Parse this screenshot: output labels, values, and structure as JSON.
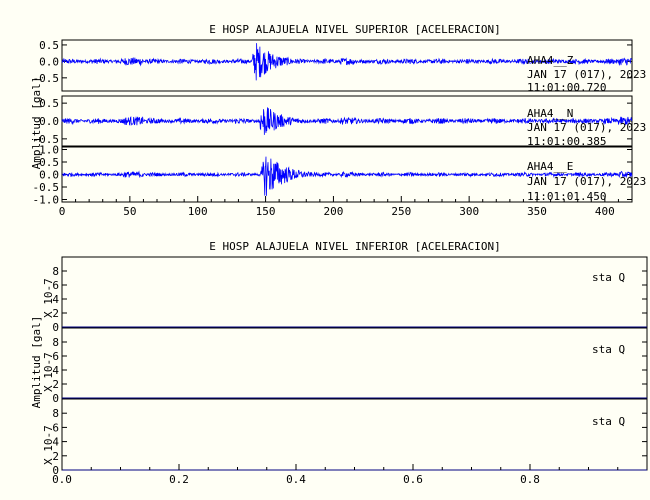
{
  "chart_data": [
    {
      "type": "line",
      "title": "E HOSP ALAJUELA NIVEL SUPERIOR [ACELERACION]",
      "ylabel": "Amplitud [gal]",
      "xlim": [
        0,
        420
      ],
      "x_ticks": [
        "0",
        "50",
        "100",
        "150",
        "200",
        "250",
        "300",
        "350",
        "400"
      ],
      "line_color": "#0000ff",
      "panels": [
        {
          "name": "AHA4 Z",
          "station_label": "AHA4__Z",
          "date_label": "JAN 17 (017), 2023",
          "time_label": "11:01:00.720",
          "ylim": [
            -0.9,
            0.65
          ],
          "y_ticks": [
            "0.5",
            "0.0",
            "-0.5"
          ],
          "peak_abs": 0.62,
          "event_onset_s": 140,
          "event_peak_s": 143
        },
        {
          "name": "AHA4 N",
          "station_label": "AHA4__N",
          "date_label": "JAN 17 (017), 2023",
          "time_label": "11:01:00.385",
          "ylim": [
            -0.7,
            0.7
          ],
          "y_ticks": [
            "0.5",
            "0.0",
            "-0.5"
          ],
          "peak_abs": 0.5,
          "event_onset_s": 138,
          "event_peak_s": 148
        },
        {
          "name": "AHA4 E",
          "station_label": "AHA4__E",
          "date_label": "JAN 17 (017), 2023",
          "time_label": "11:01:01.450",
          "ylim": [
            -1.1,
            1.1
          ],
          "y_ticks": [
            "1.0",
            "0.5",
            "0.0",
            "-0.5",
            "-1.0"
          ],
          "peak_abs": 1.0,
          "event_onset_s": 140,
          "event_peak_s": 150
        }
      ]
    },
    {
      "type": "line",
      "title": "E HOSP ALAJUELA NIVEL INFERIOR [ACELERACION]",
      "ylabel": "Amplitud [gal]",
      "y_unit_label": "X 10-7",
      "xlim": [
        0,
        1
      ],
      "x_ticks": [
        "0.0",
        "0.2",
        "0.4",
        "0.6",
        "0.8"
      ],
      "line_color": "#000080",
      "panels": [
        {
          "name": "sta Q",
          "station_label": "sta  Q",
          "ylim": [
            0,
            10
          ],
          "y_ticks": [
            "8",
            "6",
            "4",
            "2",
            "0"
          ],
          "values": [
            0,
            0
          ]
        },
        {
          "name": "sta Q",
          "station_label": "sta  Q",
          "ylim": [
            0,
            10
          ],
          "y_ticks": [
            "8",
            "6",
            "4",
            "2",
            "0"
          ],
          "values": [
            0,
            0
          ]
        },
        {
          "name": "sta Q",
          "station_label": "sta  Q",
          "ylim": [
            0,
            10
          ],
          "y_ticks": [
            "8",
            "6",
            "4",
            "2",
            "0"
          ],
          "values": [
            0,
            0
          ]
        }
      ]
    }
  ]
}
